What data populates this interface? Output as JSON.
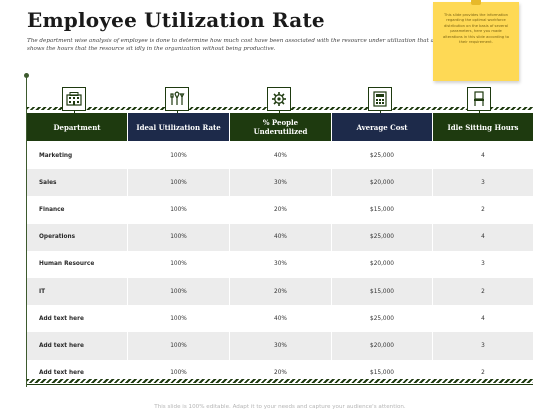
{
  "title": "Employee Utilization Rate",
  "subtitle": "The department wise analysis of employee is done to determine how much cost have been associated with the resource under utilization that also shows the hours that the resource sit idly in the organization without being productive.",
  "note": {
    "text": "This slide provides the information regarding the optimal workforce distribution on the basis of several parameters, here you made alterations in this slide according to their requirement."
  },
  "table": {
    "headers": [
      {
        "label": "Department",
        "icon": "building-icon"
      },
      {
        "label": "Ideal Utilization Rate",
        "icon": "tools-icon"
      },
      {
        "label": "% People Underutilized",
        "icon": "gear-icon"
      },
      {
        "label": "Average Cost",
        "icon": "calculator-icon"
      },
      {
        "label": "Idle Sitting Hours",
        "icon": "chair-icon"
      }
    ],
    "rows": [
      {
        "department": "Marketing",
        "ideal_rate": "100%",
        "underutilized": "40%",
        "avg_cost": "$25,000",
        "idle_hours": "4"
      },
      {
        "department": "Sales",
        "ideal_rate": "100%",
        "underutilized": "30%",
        "avg_cost": "$20,000",
        "idle_hours": "3"
      },
      {
        "department": "Finance",
        "ideal_rate": "100%",
        "underutilized": "20%",
        "avg_cost": "$15,000",
        "idle_hours": "2"
      },
      {
        "department": "Operations",
        "ideal_rate": "100%",
        "underutilized": "40%",
        "avg_cost": "$25,000",
        "idle_hours": "4"
      },
      {
        "department": "Human Resource",
        "ideal_rate": "100%",
        "underutilized": "30%",
        "avg_cost": "$20,000",
        "idle_hours": "3"
      },
      {
        "department": "IT",
        "ideal_rate": "100%",
        "underutilized": "20%",
        "avg_cost": "$15,000",
        "idle_hours": "2"
      },
      {
        "department": "Add text here",
        "ideal_rate": "100%",
        "underutilized": "40%",
        "avg_cost": "$25,000",
        "idle_hours": "4"
      },
      {
        "department": "Add text here",
        "ideal_rate": "100%",
        "underutilized": "30%",
        "avg_cost": "$20,000",
        "idle_hours": "3"
      },
      {
        "department": "Add text here",
        "ideal_rate": "100%",
        "underutilized": "20%",
        "avg_cost": "$15,000",
        "idle_hours": "2"
      }
    ]
  },
  "footer": "This slide is 100% editable. Adapt it to your needs and capture your audience's attention.",
  "colors": {
    "green": "#1e3a0f",
    "navy": "#1d2a4a",
    "note": "#fed955",
    "row_alt": "#ececec"
  }
}
